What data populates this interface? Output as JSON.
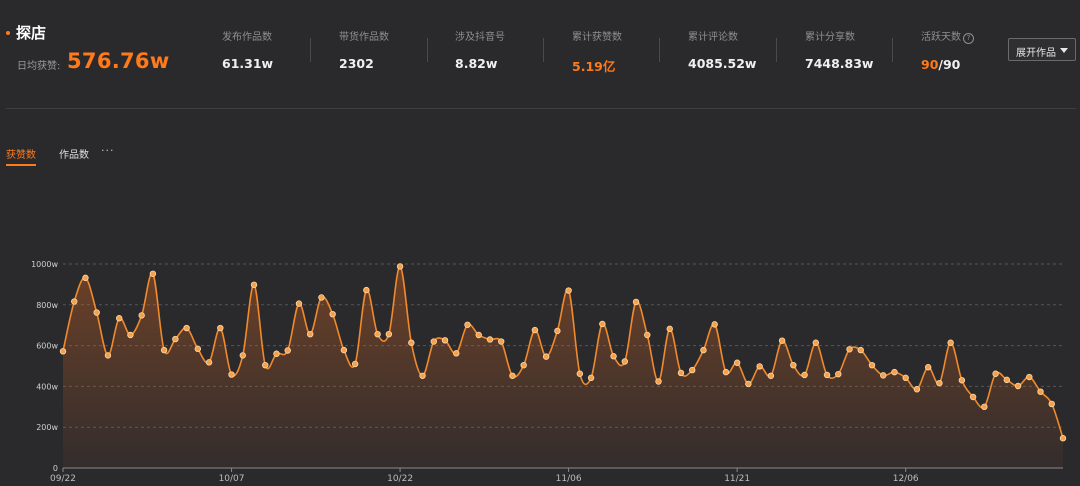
{
  "header": {
    "title": "探店",
    "daily_label": "日均获赞:",
    "daily_value": "576.76w",
    "stats": [
      {
        "label": "发布作品数",
        "value": "61.31w"
      },
      {
        "label": "带货作品数",
        "value": "2302"
      },
      {
        "label": "涉及抖音号",
        "value": "8.82w"
      },
      {
        "label": "累计获赞数",
        "value": "5.19亿",
        "highlight": true
      },
      {
        "label": "累计评论数",
        "value": "4085.52w"
      },
      {
        "label": "累计分享数",
        "value": "7448.83w"
      }
    ],
    "active": {
      "label": "活跃天数",
      "help_icon": "?",
      "value": "90",
      "total": "/90"
    },
    "expand_button": "展开作品"
  },
  "tabs": {
    "active": "获赞数",
    "second": "作品数",
    "more": "···"
  },
  "colors": {
    "accent": "#ff7a1a",
    "background": "#2a2a2d",
    "line": "#f08a2c"
  },
  "chart_data": {
    "type": "area",
    "title": "",
    "xlabel": "",
    "ylabel": "",
    "ylim": [
      0,
      1000
    ],
    "yticks": [
      0,
      200,
      400,
      600,
      800,
      1000
    ],
    "ytick_labels": [
      "0",
      "200w",
      "400w",
      "600w",
      "800w",
      "1000w"
    ],
    "xtick_labels": [
      "09/22",
      "10/07",
      "10/22",
      "11/06",
      "11/21",
      "12/06"
    ],
    "xtick_indices": [
      0,
      15,
      30,
      45,
      60,
      75
    ],
    "grid": true,
    "series": [
      {
        "values": [
          572,
          816,
          932,
          762,
          552,
          734,
          652,
          748,
          952,
          578,
          632,
          686,
          584,
          518,
          686,
          458,
          552,
          898,
          504,
          560,
          576,
          806,
          656,
          836,
          754,
          578,
          510,
          872,
          656,
          656,
          988,
          614,
          452,
          620,
          626,
          562,
          702,
          652,
          630,
          620,
          452,
          504,
          676,
          546,
          672,
          870,
          462,
          442,
          706,
          548,
          522,
          814,
          652,
          424,
          682,
          466,
          480,
          578,
          704,
          470,
          516,
          412,
          498,
          452,
          624,
          504,
          456,
          614,
          456,
          460,
          582,
          578,
          504,
          454,
          470,
          442,
          386,
          494,
          416,
          614,
          430,
          348,
          300,
          462,
          432,
          402,
          446,
          374,
          314,
          146
        ]
      }
    ]
  }
}
